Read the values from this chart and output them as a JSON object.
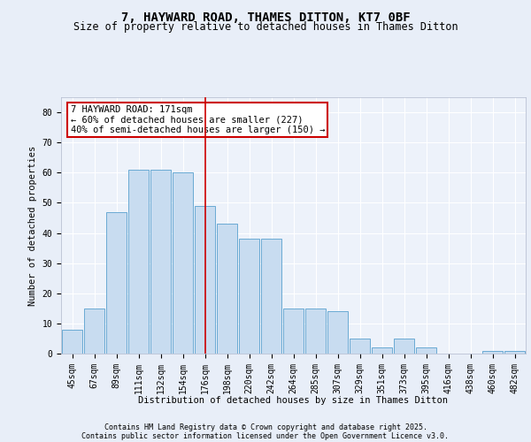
{
  "title1": "7, HAYWARD ROAD, THAMES DITTON, KT7 0BF",
  "title2": "Size of property relative to detached houses in Thames Ditton",
  "xlabel": "Distribution of detached houses by size in Thames Ditton",
  "ylabel": "Number of detached properties",
  "categories": [
    "45sqm",
    "67sqm",
    "89sqm",
    "111sqm",
    "132sqm",
    "154sqm",
    "176sqm",
    "198sqm",
    "220sqm",
    "242sqm",
    "264sqm",
    "285sqm",
    "307sqm",
    "329sqm",
    "351sqm",
    "373sqm",
    "395sqm",
    "416sqm",
    "438sqm",
    "460sqm",
    "482sqm"
  ],
  "values": [
    8,
    15,
    47,
    61,
    61,
    60,
    49,
    43,
    38,
    38,
    15,
    15,
    14,
    5,
    2,
    5,
    2,
    0,
    0,
    1,
    1
  ],
  "bar_color": "#c8dcf0",
  "bar_edge_color": "#6aaad4",
  "vline_index": 6,
  "vline_color": "#cc0000",
  "annotation_text": "7 HAYWARD ROAD: 171sqm\n← 60% of detached houses are smaller (227)\n40% of semi-detached houses are larger (150) →",
  "annotation_box_color": "#ffffff",
  "annotation_box_edge": "#cc0000",
  "ylim": [
    0,
    85
  ],
  "yticks": [
    0,
    10,
    20,
    30,
    40,
    50,
    60,
    70,
    80
  ],
  "footer1": "Contains HM Land Registry data © Crown copyright and database right 2025.",
  "footer2": "Contains public sector information licensed under the Open Government Licence v3.0.",
  "bg_color": "#e8eef8",
  "plot_bg_color": "#edf2fa",
  "grid_color": "#ffffff",
  "title1_fontsize": 10,
  "title2_fontsize": 8.5,
  "axis_label_fontsize": 7.5,
  "tick_fontsize": 7,
  "annotation_fontsize": 7.5,
  "footer_fontsize": 6
}
